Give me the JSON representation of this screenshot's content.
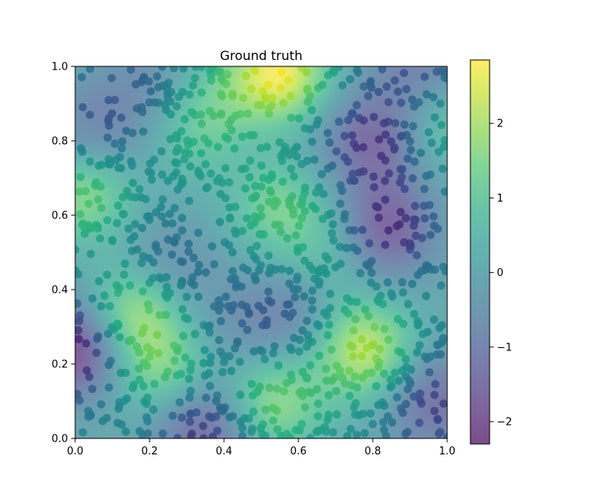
{
  "chart_data": {
    "type": "heatmap",
    "title": "Ground truth",
    "xlabel": "",
    "ylabel": "",
    "xlim": [
      0.0,
      1.0
    ],
    "ylim": [
      0.0,
      1.0
    ],
    "x_ticks": [
      "0.0",
      "0.2",
      "0.4",
      "0.6",
      "0.8",
      "1.0"
    ],
    "y_ticks": [
      "0.0",
      "0.2",
      "0.4",
      "0.6",
      "0.8",
      "1.0"
    ],
    "colormap": "viridis",
    "alpha": 0.7,
    "colorbar": {
      "range": [
        -2.3,
        2.85
      ],
      "ticks": [
        "−2",
        "−1",
        "0",
        "1",
        "2"
      ],
      "tick_values": [
        -2,
        -1,
        0,
        1,
        2
      ]
    },
    "field_features": [
      {
        "x": 0.55,
        "y": 0.98,
        "value": 2.6,
        "kind": "peak"
      },
      {
        "x": 0.78,
        "y": 0.24,
        "value": 2.2,
        "kind": "peak"
      },
      {
        "x": 0.16,
        "y": 0.34,
        "value": 1.9,
        "kind": "peak"
      },
      {
        "x": 0.02,
        "y": 0.65,
        "value": 1.6,
        "kind": "peak"
      },
      {
        "x": 0.55,
        "y": 0.62,
        "value": 1.3,
        "kind": "peak"
      },
      {
        "x": 0.53,
        "y": 0.1,
        "value": 1.6,
        "kind": "peak"
      },
      {
        "x": 0.24,
        "y": 0.18,
        "value": 1.5,
        "kind": "peak"
      },
      {
        "x": 0.33,
        "y": 0.83,
        "value": 1.0,
        "kind": "peak"
      },
      {
        "x": 0.38,
        "y": 0.95,
        "value": 0.6,
        "kind": "peak"
      },
      {
        "x": 0.97,
        "y": 0.85,
        "value": 1.2,
        "kind": "peak"
      },
      {
        "x": 0.68,
        "y": 0.5,
        "value": 0.8,
        "kind": "peak"
      },
      {
        "x": 0.0,
        "y": 0.24,
        "value": -2.3,
        "kind": "trough"
      },
      {
        "x": 0.84,
        "y": 0.56,
        "value": -1.8,
        "kind": "trough"
      },
      {
        "x": 0.82,
        "y": 0.8,
        "value": -1.5,
        "kind": "trough"
      },
      {
        "x": 0.34,
        "y": 0.03,
        "value": -1.6,
        "kind": "trough"
      },
      {
        "x": 0.96,
        "y": 0.1,
        "value": -1.3,
        "kind": "trough"
      },
      {
        "x": 0.92,
        "y": 0.98,
        "value": -1.1,
        "kind": "trough"
      },
      {
        "x": 0.05,
        "y": 0.84,
        "value": -1.0,
        "kind": "trough"
      },
      {
        "x": 0.25,
        "y": 0.46,
        "value": -0.9,
        "kind": "trough"
      },
      {
        "x": 0.58,
        "y": 0.33,
        "value": -0.8,
        "kind": "trough"
      },
      {
        "x": 0.44,
        "y": 0.3,
        "value": -0.5,
        "kind": "trough"
      },
      {
        "x": 0.2,
        "y": 0.96,
        "value": -0.6,
        "kind": "trough"
      },
      {
        "x": 0.7,
        "y": 0.82,
        "value": -0.4,
        "kind": "trough"
      }
    ],
    "scatter": {
      "count": 1000,
      "distribution": "uniform on [0,1]x[0,1]",
      "color_by": "field value at point"
    }
  }
}
